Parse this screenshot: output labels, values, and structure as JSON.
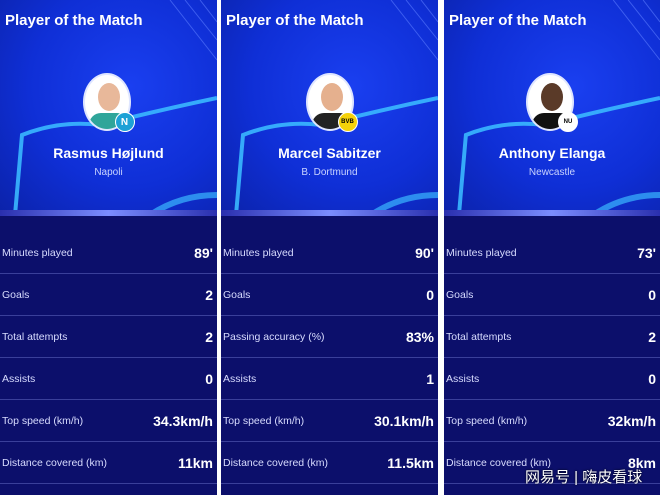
{
  "panels": [
    {
      "title": "Player of the Match",
      "name": "Rasmus Højlund",
      "club": "Napoli",
      "badge": "N",
      "badge_color": "#1da1d6",
      "kit_color": "#2fa59a",
      "stats": [
        {
          "label": "Minutes played",
          "value": "89'"
        },
        {
          "label": "Goals",
          "value": "2"
        },
        {
          "label": "Total attempts",
          "value": "2"
        },
        {
          "label": "Assists",
          "value": "0"
        },
        {
          "label": "Top speed (km/h)",
          "value": "34.3km/h"
        },
        {
          "label": "Distance covered (km)",
          "value": "11km"
        }
      ]
    },
    {
      "title": "Player of the Match",
      "name": "Marcel Sabitzer",
      "club": "B. Dortmund",
      "badge": "BVB",
      "badge_color": "#f5d20a",
      "kit_color": "#222",
      "stats": [
        {
          "label": "Minutes played",
          "value": "90'"
        },
        {
          "label": "Goals",
          "value": "0"
        },
        {
          "label": "Passing accuracy (%)",
          "value": "83%"
        },
        {
          "label": "Assists",
          "value": "1"
        },
        {
          "label": "Top speed (km/h)",
          "value": "30.1km/h"
        },
        {
          "label": "Distance covered (km)",
          "value": "11.5km"
        }
      ]
    },
    {
      "title": "Player of the Match",
      "name": "Anthony Elanga",
      "club": "Newcastle",
      "badge": "NU",
      "badge_color": "#ffffff",
      "kit_color": "#111",
      "stats": [
        {
          "label": "Minutes played",
          "value": "73'"
        },
        {
          "label": "Goals",
          "value": "0"
        },
        {
          "label": "Total attempts",
          "value": "2"
        },
        {
          "label": "Assists",
          "value": "0"
        },
        {
          "label": "Top speed (km/h)",
          "value": "32km/h"
        },
        {
          "label": "Distance covered (km)",
          "value": "8km"
        }
      ]
    }
  ],
  "watermark": "网易号 | 嗨皮看球"
}
